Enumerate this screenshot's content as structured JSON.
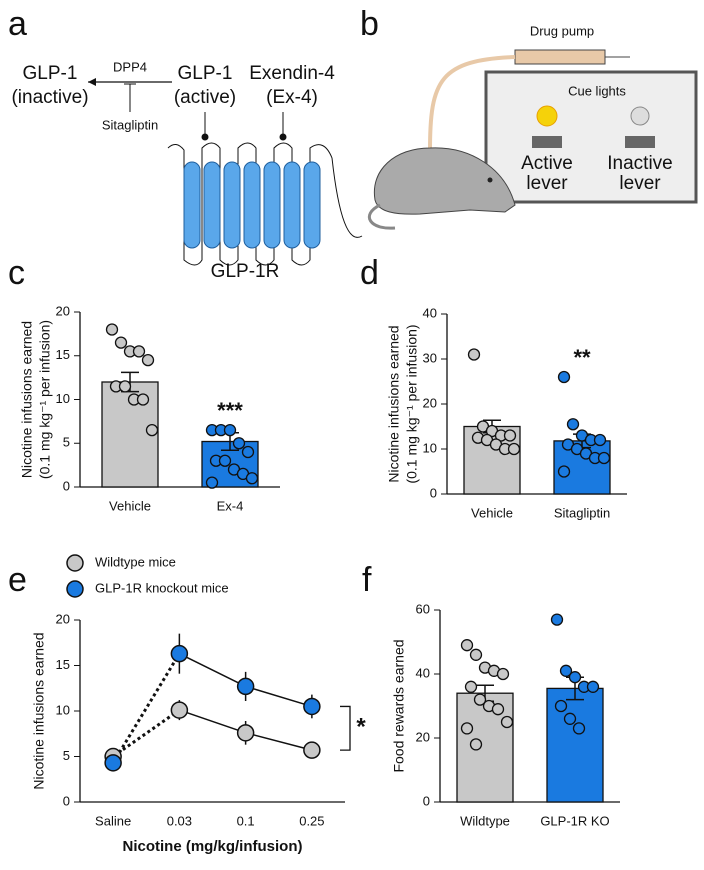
{
  "panel_labels": [
    "a",
    "b",
    "c",
    "d",
    "e",
    "f"
  ],
  "diagram_a": {
    "inactive": [
      "GLP-1",
      "(inactive)"
    ],
    "enzyme": "DPP4",
    "inhibitor": "Sitagliptin",
    "active": [
      "GLP-1",
      "(active)"
    ],
    "agonist": [
      "Exendin-4",
      "(Ex-4)"
    ],
    "receptor": "GLP-1R"
  },
  "diagram_b": {
    "pump": "Drug pump",
    "lights": "Cue lights",
    "active_lever": [
      "Active",
      "lever"
    ],
    "inactive_lever": [
      "Inactive",
      "lever"
    ]
  },
  "chart_data": [
    {
      "type": "bar",
      "ylabel": [
        "Nicotine infusions earned",
        "(0.1 mg kg⁻¹ per infusion)"
      ],
      "categories": [
        "Vehicle",
        "Ex-4"
      ],
      "values": [
        12,
        5.2
      ],
      "errors": [
        1.1,
        1.0
      ],
      "colors": [
        "#c8c8c8",
        "#1a7ae0"
      ],
      "points": [
        [
          18,
          16.5,
          15.5,
          15.5,
          14.5,
          11.5,
          11.5,
          10,
          10,
          6.5
        ],
        [
          6.5,
          6.5,
          6.5,
          5,
          4,
          3,
          3,
          2,
          1.5,
          1,
          0.5
        ]
      ],
      "ylim": [
        0,
        20
      ],
      "yticks": [
        0,
        5,
        10,
        15,
        20
      ],
      "annotation": "***"
    },
    {
      "type": "bar",
      "ylabel": [
        "Nicotine infusions earned",
        "(0.1 mg kg⁻¹ per infusion)"
      ],
      "categories": [
        "Vehicle",
        "Sitagliptin"
      ],
      "values": [
        15,
        11.8
      ],
      "errors": [
        1.4,
        1.5
      ],
      "colors": [
        "#c8c8c8",
        "#1a7ae0"
      ],
      "points": [
        [
          31,
          15,
          14,
          13,
          13,
          12.5,
          12,
          11,
          10,
          10
        ],
        [
          26,
          15.5,
          13,
          12,
          12,
          11,
          10,
          9,
          8,
          8,
          5
        ]
      ],
      "ylim": [
        0,
        40
      ],
      "yticks": [
        0,
        10,
        20,
        30,
        40
      ],
      "annotation": "**"
    },
    {
      "type": "line",
      "ylabel": [
        "Nicotine infusions earned"
      ],
      "xlabel": "Nicotine (mg/kg/infusion)",
      "categories": [
        "Saline",
        "0.03",
        "0.1",
        "0.25"
      ],
      "series": [
        {
          "name": "Wildtype mice",
          "color": "#c8c8c8",
          "values": [
            5,
            10.1,
            7.6,
            5.7
          ],
          "errors": [
            0.6,
            1.1,
            1.3,
            0.5
          ]
        },
        {
          "name": "GLP-1R knockout mice",
          "color": "#1a7ae0",
          "values": [
            4.3,
            16.3,
            12.7,
            10.5
          ],
          "errors": [
            0.5,
            2.2,
            1.6,
            1.3
          ]
        }
      ],
      "ylim": [
        0,
        20
      ],
      "yticks": [
        0,
        5,
        10,
        15,
        20
      ],
      "annotation": "*"
    },
    {
      "type": "bar",
      "ylabel": [
        "Food rewards earned"
      ],
      "categories": [
        "Wildtype",
        "GLP-1R KO"
      ],
      "values": [
        34,
        35.5
      ],
      "errors": [
        2.5,
        3.5
      ],
      "colors": [
        "#c8c8c8",
        "#1a7ae0"
      ],
      "points": [
        [
          49,
          46,
          42,
          41,
          40,
          36,
          32,
          30,
          29,
          25,
          23,
          18
        ],
        [
          57,
          41,
          39,
          36,
          36,
          30,
          26,
          23
        ]
      ],
      "ylim": [
        0,
        60
      ],
      "yticks": [
        0,
        20,
        40,
        60
      ]
    }
  ]
}
